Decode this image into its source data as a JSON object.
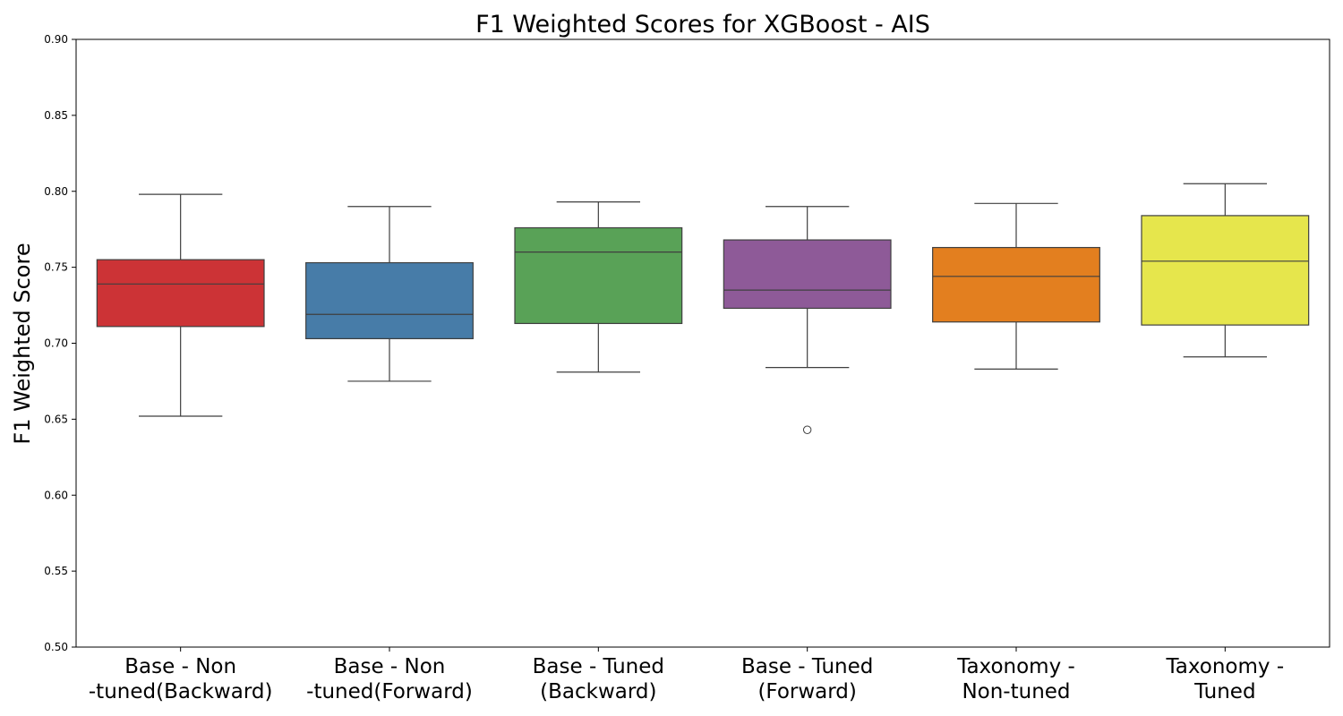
{
  "chart_data": {
    "type": "box",
    "title": "F1 Weighted Scores for XGBoost - AIS",
    "xlabel": "",
    "ylabel": "F1 Weighted Score",
    "ylim": [
      0.5,
      0.9
    ],
    "yticks": [
      "0.50",
      "0.55",
      "0.60",
      "0.65",
      "0.70",
      "0.75",
      "0.80",
      "0.85",
      "0.90"
    ],
    "grid": false,
    "legend": "none",
    "categories": [
      [
        "Base - Non",
        "-tuned(Backward)"
      ],
      [
        "Base - Non",
        "-tuned(Forward)"
      ],
      [
        "Base - Tuned",
        "(Backward)"
      ],
      [
        "Base - Tuned",
        "(Forward)"
      ],
      [
        "Taxonomy -",
        "Non-tuned"
      ],
      [
        "Taxonomy -",
        "Tuned"
      ]
    ],
    "boxes": [
      {
        "whisker_low": 0.652,
        "q1": 0.711,
        "median": 0.739,
        "q3": 0.755,
        "whisker_high": 0.798,
        "outliers": [],
        "color": "#cc3336"
      },
      {
        "whisker_low": 0.675,
        "q1": 0.703,
        "median": 0.719,
        "q3": 0.753,
        "whisker_high": 0.79,
        "outliers": [],
        "color": "#477ca8"
      },
      {
        "whisker_low": 0.681,
        "q1": 0.713,
        "median": 0.76,
        "q3": 0.776,
        "whisker_high": 0.793,
        "outliers": [],
        "color": "#59a257"
      },
      {
        "whisker_low": 0.684,
        "q1": 0.723,
        "median": 0.735,
        "q3": 0.768,
        "whisker_high": 0.79,
        "outliers": [
          0.643
        ],
        "color": "#8e5a98"
      },
      {
        "whisker_low": 0.683,
        "q1": 0.714,
        "median": 0.744,
        "q3": 0.763,
        "whisker_high": 0.792,
        "outliers": [],
        "color": "#e37f1f"
      },
      {
        "whisker_low": 0.691,
        "q1": 0.712,
        "median": 0.754,
        "q3": 0.784,
        "whisker_high": 0.805,
        "outliers": [],
        "color": "#e6e64c"
      }
    ],
    "line_color": "#3f3f3f"
  }
}
